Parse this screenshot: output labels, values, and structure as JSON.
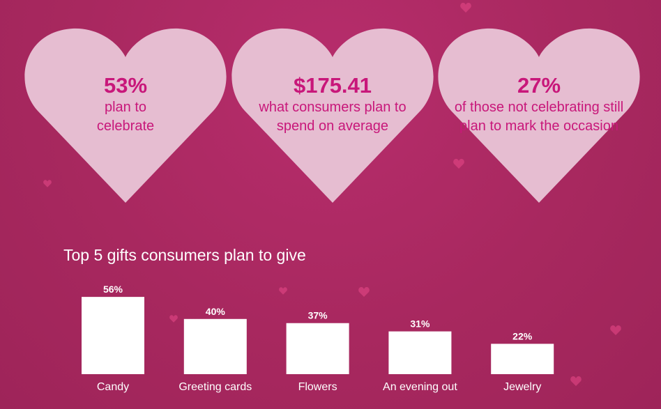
{
  "stats": [
    {
      "value": "53%",
      "label": "plan to celebrate"
    },
    {
      "value": "$175.41",
      "label": "what consumers plan to spend on average"
    },
    {
      "value": "27%",
      "label": "of those not celebrating still plan to mark the occasion"
    }
  ],
  "colors": {
    "background": "#a8285f",
    "heart": "#e6bdd1",
    "accent_text": "#c8177a",
    "bars": "#ffffff"
  },
  "chart_data": {
    "type": "bar",
    "title": "Top 5 gifts consumers plan to give",
    "categories": [
      "Candy",
      "Greeting cards",
      "Flowers",
      "An evening out",
      "Jewelry"
    ],
    "values": [
      56,
      40,
      37,
      31,
      22
    ],
    "data_labels": [
      "56%",
      "40%",
      "37%",
      "31%",
      "22%"
    ],
    "unit": "%",
    "grid": false,
    "axes_visible": false
  }
}
